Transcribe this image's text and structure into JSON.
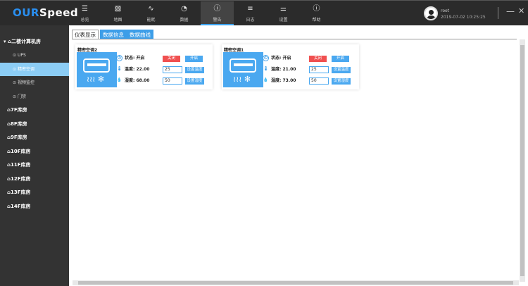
{
  "app": {
    "logo_a": "OUR",
    "logo_b": "Speed"
  },
  "nav": [
    {
      "label": "总览",
      "icon": "list-icon"
    },
    {
      "label": "地图",
      "icon": "map-icon"
    },
    {
      "label": "能耗",
      "icon": "wave-icon"
    },
    {
      "label": "数据",
      "icon": "gauge-icon"
    },
    {
      "label": "警告",
      "icon": "alert-icon",
      "active": true
    },
    {
      "label": "日志",
      "icon": "log-icon"
    },
    {
      "label": "设置",
      "icon": "sliders-icon"
    },
    {
      "label": "帮助",
      "icon": "help-icon"
    }
  ],
  "user": {
    "name": "root",
    "time": "2019-07-02 10:25:25"
  },
  "sidebar": {
    "group": "二楼计算机房",
    "subs": [
      "UPS",
      "精密空调",
      "视频监控",
      "门禁"
    ],
    "selected": "精密空调",
    "rooms": [
      "7F库房",
      "8F库房",
      "9F库房",
      "10F库房",
      "11F库房",
      "12F库房",
      "13F库房",
      "14F库房"
    ]
  },
  "tabs": [
    "仪表显示",
    "数据信息",
    "数据曲线"
  ],
  "cards": [
    {
      "title": "精密空调2",
      "status": "状态: 开启",
      "temp": "温度: 22.00",
      "hum": "湿度: 68.00",
      "off": "关闭",
      "on": "开启",
      "temp_in": "25",
      "hum_in": "50",
      "set_temp": "设置温度",
      "set_hum": "设置湿度"
    },
    {
      "title": "精密空调1",
      "status": "状态: 开启",
      "temp": "温度: 21.00",
      "hum": "湿度: 73.00",
      "off": "关闭",
      "on": "开启",
      "temp_in": "25",
      "hum_in": "50",
      "set_temp": "设置温度",
      "set_hum": "设置湿度"
    }
  ],
  "colors": {
    "accent": "#3d9ee8",
    "off": "#f05050",
    "selected": "#8ccdf5"
  }
}
